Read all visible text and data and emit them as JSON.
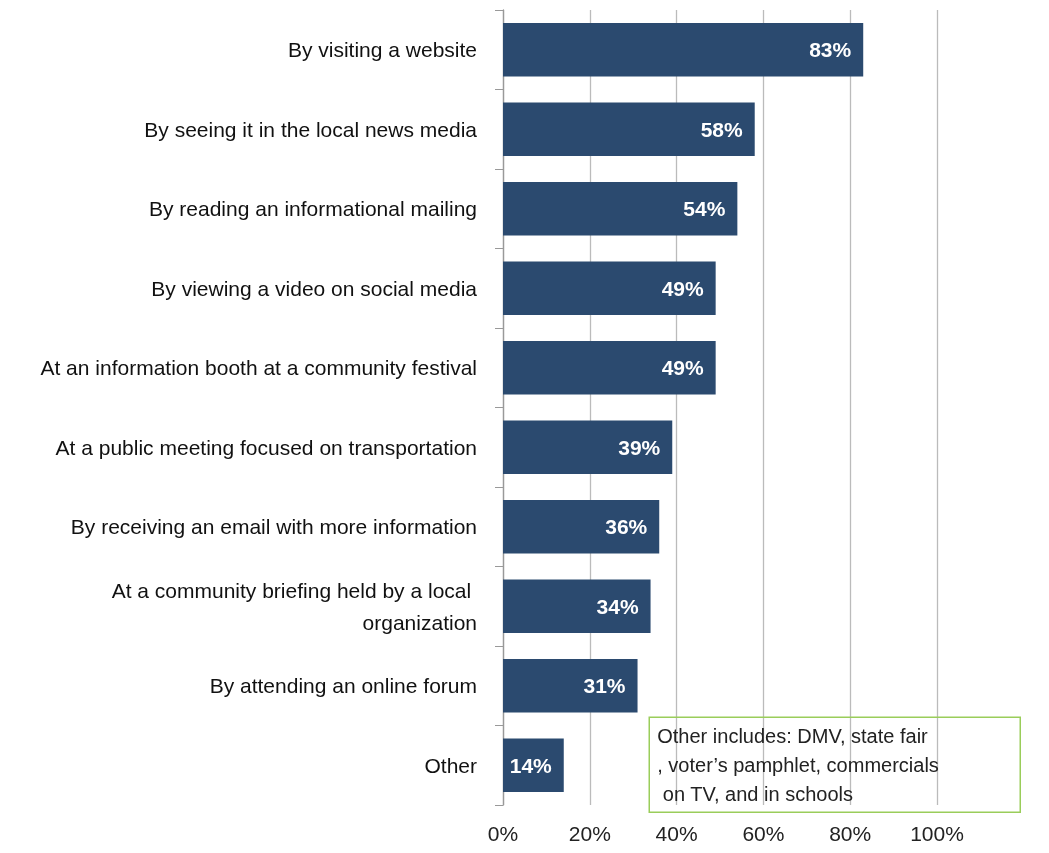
{
  "chart_data": {
    "type": "bar",
    "orientation": "horizontal",
    "categories": [
      "By visiting a website",
      "By seeing it in the local news media",
      "By reading an informational mailing",
      "By viewing a video on social media",
      "At an information booth at a community festival",
      "At a public meeting focused on transportation",
      "By receiving an email with more information",
      "At a community briefing held by a local organization",
      "By attending an online forum",
      "Other"
    ],
    "values": [
      83,
      58,
      54,
      49,
      49,
      39,
      36,
      34,
      31,
      14
    ],
    "value_labels": [
      "83%",
      "58%",
      "54%",
      "49%",
      "49%",
      "39%",
      "36%",
      "34%",
      "31%",
      "14%"
    ],
    "color": "#2b4a6f",
    "xlim": [
      0,
      100
    ],
    "xticks": [
      {
        "value": 0,
        "label": "0%"
      },
      {
        "value": 20,
        "label": "20%"
      },
      {
        "value": 40,
        "label": "40%"
      },
      {
        "value": 60,
        "label": "60%"
      },
      {
        "value": 80,
        "label": "80%"
      },
      {
        "value": 100,
        "label": "100%"
      }
    ],
    "grid": "x",
    "annotations": [
      "Other includes: DMV, state fair, voter’s pamphlet, commercials on TV, and in schools"
    ]
  }
}
